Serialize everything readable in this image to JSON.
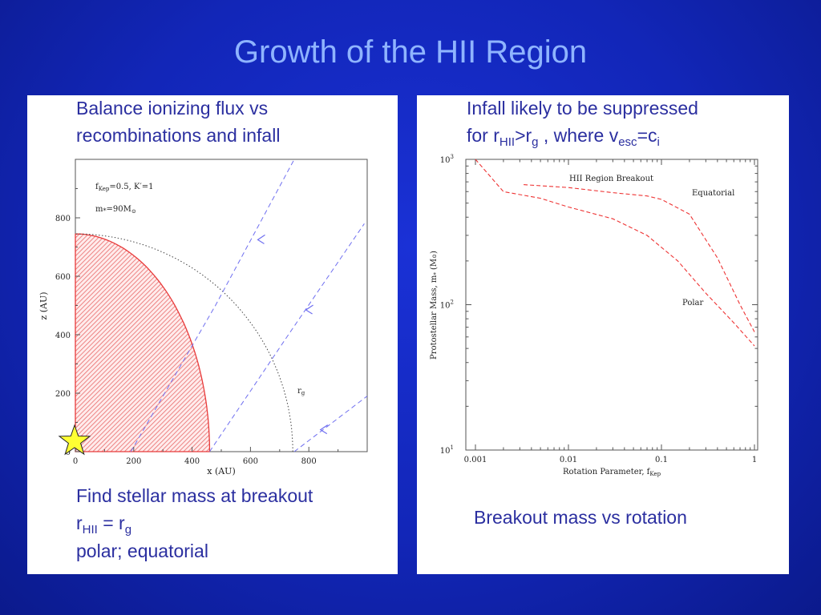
{
  "slide": {
    "title": "Growth of the HII Region"
  },
  "left_panel": {
    "caption_top_line1": "Balance ionizing flux vs",
    "caption_top_line2": "recombinations and infall",
    "caption_bottom_line1": "Find stellar mass at breakout",
    "caption_bottom_eq_r1": "r",
    "caption_bottom_eq_sub1": "HII",
    "caption_bottom_eq_mid": " = r",
    "caption_bottom_eq_sub2": "g",
    "caption_bottom_line3": "polar; equatorial",
    "star_color": "#ffff33"
  },
  "right_panel": {
    "caption_top_line1": "Infall likely to be suppressed",
    "ct_a": "for r",
    "ct_sub1": "HII",
    "ct_b": ">r",
    "ct_sub2": "g",
    "ct_c": " , where v",
    "ct_sub3": "esc",
    "ct_d": "=c",
    "ct_sub4": "i",
    "caption_bottom": "Breakout mass vs rotation"
  },
  "chart_data": [
    {
      "type": "scatter",
      "name": "hii-region-geometry",
      "xlabel": "x (AU)",
      "ylabel": "z (AU)",
      "xlim": [
        0,
        1000
      ],
      "ylim": [
        0,
        1000
      ],
      "xticks": [
        "0",
        "200",
        "400",
        "600",
        "800"
      ],
      "yticks": [
        "0",
        "200",
        "400",
        "600",
        "800"
      ],
      "annotations": {
        "fkep_f": "f",
        "fkep_sub": "Kep",
        "fkep_rest": "=0.5,  K′=1",
        "mass_m": "m",
        "mass_star": "*",
        "mass_rest": "=90M",
        "mass_sun": "⊙",
        "rg_r": "r",
        "rg_sub": "g"
      },
      "hii_region": {
        "shape": "half-ellipse",
        "x_extent": 460,
        "z_extent": 745,
        "color": "#e83a3a"
      },
      "rg_boundary": {
        "shape": "circle",
        "radius": 745,
        "style": "dotted"
      },
      "streamlines": [
        {
          "points": [
            [
              190,
              0
            ],
            [
              480,
              500
            ],
            [
              750,
              1000
            ]
          ]
        },
        {
          "points": [
            [
              460,
              0
            ],
            [
              730,
              400
            ],
            [
              990,
              780
            ]
          ]
        },
        {
          "points": [
            [
              750,
              0
            ],
            [
              1000,
              190
            ]
          ]
        }
      ],
      "streamline_arrows": [
        {
          "x": 625,
          "z": 725
        },
        {
          "x": 790,
          "z": 485
        },
        {
          "x": 840,
          "z": 75
        }
      ],
      "line_color": "#6f6ff0"
    },
    {
      "type": "line",
      "name": "breakout-mass-vs-rotation",
      "title": "HII Region Breakout",
      "xlabel": "Rotation Parameter, f",
      "xlabel_sub": "Kep",
      "ylabel": "Protostellar Mass, m",
      "ylabel_sub": "*",
      "ylabel_tail": " (M",
      "ylabel_sun": "⊙",
      "ylabel_end": ")",
      "x_scale": "log",
      "y_scale": "log",
      "xlim": [
        0.001,
        1
      ],
      "ylim": [
        10,
        1000
      ],
      "xtick_values": [
        0.001,
        0.01,
        0.1,
        1
      ],
      "xticks": [
        "0.001",
        "0.01",
        "0.1",
        "1"
      ],
      "ytick_values": [
        10,
        100,
        1000
      ],
      "ytick_base": [
        "10",
        "10",
        "10"
      ],
      "ytick_exp": [
        "1",
        "2",
        "3"
      ],
      "series": [
        {
          "name": "Equatorial",
          "x": [
            0.0033,
            0.01,
            0.03,
            0.07,
            0.1,
            0.2,
            0.4,
            0.7,
            1.0
          ],
          "y": [
            670,
            640,
            590,
            560,
            530,
            420,
            210,
            100,
            65
          ]
        },
        {
          "name": "Polar",
          "x": [
            0.001,
            0.002,
            0.005,
            0.01,
            0.03,
            0.07,
            0.15,
            0.3,
            0.6,
            1.0
          ],
          "y": [
            1000,
            600,
            540,
            470,
            390,
            300,
            200,
            120,
            75,
            52
          ]
        }
      ],
      "line_color": "#ee3333",
      "grid": false
    }
  ]
}
